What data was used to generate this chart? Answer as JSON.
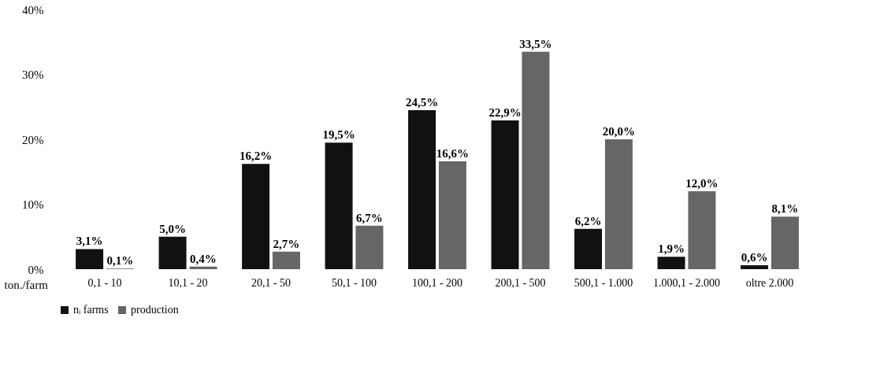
{
  "chart_data": {
    "type": "bar",
    "xlabel": "ton./farm",
    "categories": [
      "0,1 - 10",
      "10,1 - 20",
      "20,1 - 50",
      "50,1 - 100",
      "100,1 - 200",
      "200,1 - 500",
      "500,1 - 1.000",
      "1.000,1 - 2.000",
      "oltre 2.000"
    ],
    "series": [
      {
        "name": "nᵢ farms",
        "color": "#111111",
        "values": [
          3.1,
          5.0,
          16.2,
          19.5,
          24.5,
          22.9,
          6.2,
          1.9,
          0.6
        ],
        "value_labels": [
          "3,1%",
          "5,0%",
          "16,2%",
          "19,5%",
          "24,5%",
          "22,9%",
          "6,2%",
          "1,9%",
          "0,6%"
        ]
      },
      {
        "name": "production",
        "color": "#666666",
        "values": [
          0.1,
          0.4,
          2.7,
          6.7,
          16.6,
          33.5,
          20.0,
          12.0,
          8.1
        ],
        "value_labels": [
          "0,1%",
          "0,4%",
          "2,7%",
          "6,7%",
          "16,6%",
          "33,5%",
          "20,0%",
          "12,0%",
          "8,1%"
        ]
      }
    ],
    "ylim": [
      0,
      40
    ],
    "yticks": [
      {
        "value": 0,
        "label": "0%"
      },
      {
        "value": 10,
        "label": "10%"
      },
      {
        "value": 20,
        "label": "20%"
      },
      {
        "value": 30,
        "label": "30%"
      },
      {
        "value": 40,
        "label": "40%"
      }
    ],
    "grid": false,
    "legend": "bottom"
  }
}
